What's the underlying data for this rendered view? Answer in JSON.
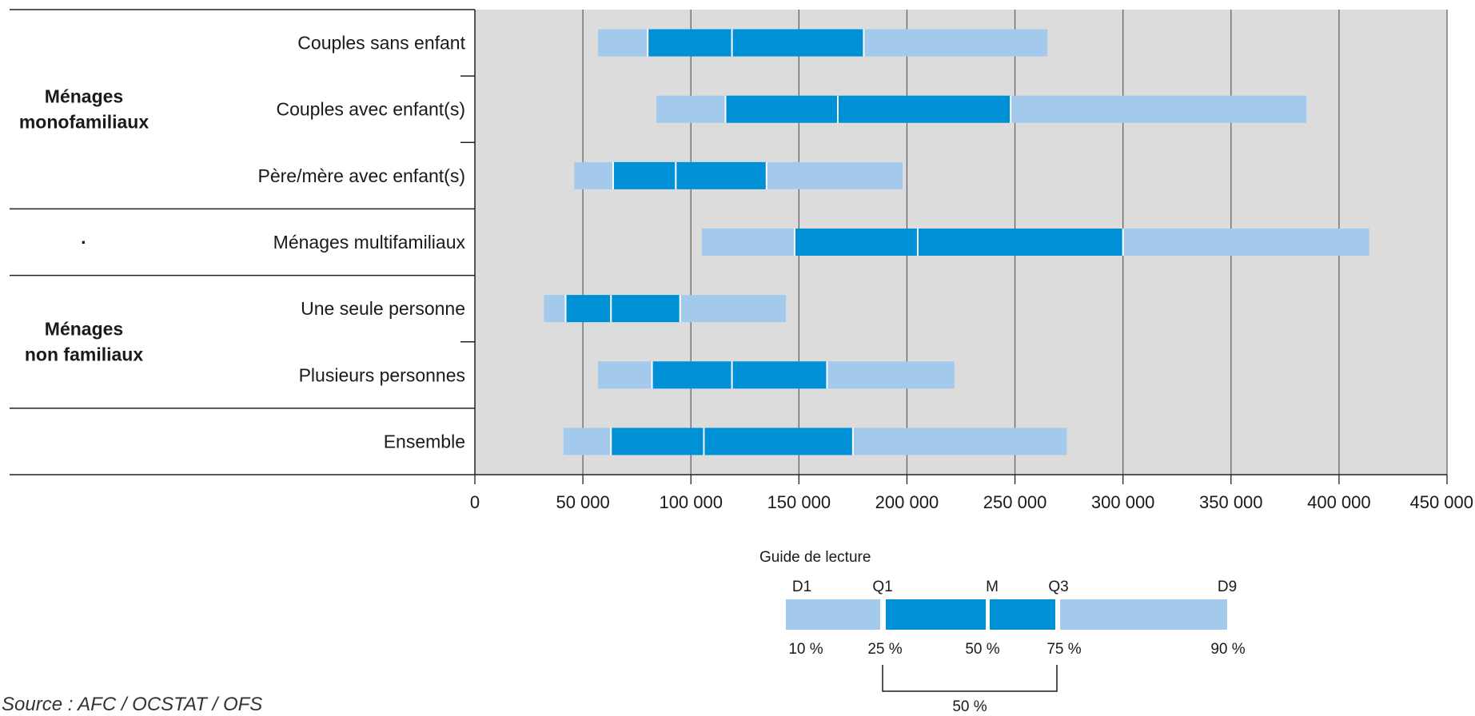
{
  "colors": {
    "plot_background": "#dcdcdc",
    "outer_decile": "#a3c9ec",
    "inner_quartile": "#0090d6",
    "gridline": "#666666",
    "separator": "#222222"
  },
  "chart_data": {
    "type": "bar",
    "orientation": "horizontal",
    "xlim": [
      0,
      450000
    ],
    "x_ticks": [
      0,
      50000,
      100000,
      150000,
      200000,
      250000,
      300000,
      350000,
      400000,
      450000
    ],
    "x_tick_labels": [
      "0",
      "50 000",
      "100 000",
      "150 000",
      "200 000",
      "250 000",
      "300 000",
      "350 000",
      "400 000",
      "450 000"
    ],
    "grid": true,
    "groups": [
      {
        "label_lines": [
          "Ménages",
          "monofamiliaux"
        ],
        "categories": 3
      },
      {
        "label_lines": [
          "·"
        ],
        "categories": 1
      },
      {
        "label_lines": [
          "Ménages",
          "non familiaux"
        ],
        "categories": 2
      },
      {
        "label_lines": [
          ""
        ],
        "categories": 1
      }
    ],
    "categories": [
      "Couples sans enfant",
      "Couples avec enfant(s)",
      "Père/mère avec enfant(s)",
      "Ménages multifamiliaux",
      "Une seule personne",
      "Plusieurs personnes",
      "Ensemble"
    ],
    "series": [
      {
        "name": "D1",
        "values": [
          57000,
          84000,
          46000,
          105000,
          32000,
          57000,
          41000
        ]
      },
      {
        "name": "Q1",
        "values": [
          80000,
          116000,
          64000,
          148000,
          42000,
          82000,
          63000
        ]
      },
      {
        "name": "M",
        "values": [
          119000,
          168000,
          93000,
          205000,
          63000,
          119000,
          106000
        ]
      },
      {
        "name": "Q3",
        "values": [
          180000,
          248000,
          135000,
          300000,
          95000,
          163000,
          175000
        ]
      },
      {
        "name": "D9",
        "values": [
          265000,
          385000,
          198000,
          414000,
          144000,
          222000,
          274000
        ]
      }
    ]
  },
  "guide": {
    "title": "Guide de lecture",
    "top_labels": [
      "D1",
      "Q1",
      "M",
      "Q3",
      "D9"
    ],
    "bottom_labels": [
      "10 %",
      "25 %",
      "50 %",
      "75 %",
      "90 %"
    ],
    "bracket_label": "50 %"
  },
  "source": "Source : AFC / OCSTAT / OFS"
}
